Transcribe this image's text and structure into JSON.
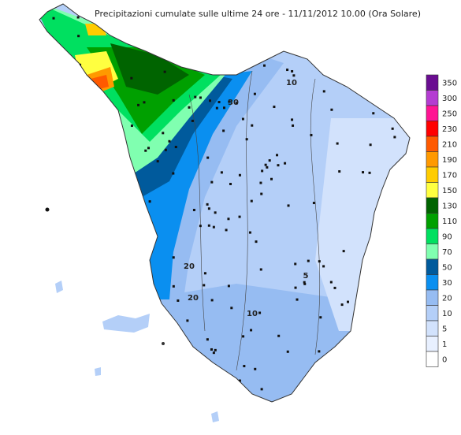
{
  "title": "Precipitazioni cumulate sulle ultime 24 ore - 11/11/2012 10.00 (Ora Solare)",
  "legend": {
    "items": [
      {
        "label": "350",
        "color": "#6a0d91"
      },
      {
        "label": "300",
        "color": "#b43cd2"
      },
      {
        "label": "250",
        "color": "#ff1493"
      },
      {
        "label": "230",
        "color": "#ff0000"
      },
      {
        "label": "210",
        "color": "#ff5a00"
      },
      {
        "label": "190",
        "color": "#ff9900"
      },
      {
        "label": "170",
        "color": "#ffcc00"
      },
      {
        "label": "150",
        "color": "#ffff40"
      },
      {
        "label": "130",
        "color": "#006400"
      },
      {
        "label": "110",
        "color": "#00a000"
      },
      {
        "label": "90",
        "color": "#00e060"
      },
      {
        "label": "70",
        "color": "#80ffb0"
      },
      {
        "label": "50",
        "color": "#005a9c"
      },
      {
        "label": "30",
        "color": "#0a8ff0"
      },
      {
        "label": "20",
        "color": "#96bcf2"
      },
      {
        "label": "10",
        "color": "#b4cff8"
      },
      {
        "label": "5",
        "color": "#d2e2fc"
      },
      {
        "label": "1",
        "color": "#e8f0ff"
      },
      {
        "label": "0",
        "color": "#ffffff"
      }
    ]
  },
  "contour_labels": [
    "20",
    "10",
    "30",
    "5",
    "10",
    "20"
  ]
}
